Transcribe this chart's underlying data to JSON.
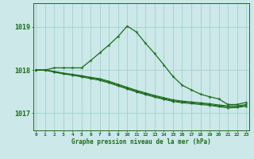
{
  "title": "Graphe pression niveau de la mer (hPa)",
  "bg_color": "#cce8e8",
  "grid_color": "#99cccc",
  "line_color": "#1a6b1a",
  "xlim": [
    -0.3,
    23.3
  ],
  "ylim": [
    1016.6,
    1019.55
  ],
  "yticks": [
    1017,
    1018,
    1019
  ],
  "xticks": [
    0,
    1,
    2,
    3,
    4,
    5,
    6,
    7,
    8,
    9,
    10,
    11,
    12,
    13,
    14,
    15,
    16,
    17,
    18,
    19,
    20,
    21,
    22,
    23
  ],
  "series": [
    {
      "x": [
        0,
        1,
        2,
        3,
        4,
        5,
        6,
        7,
        8,
        9,
        10,
        11,
        12,
        13,
        14,
        15,
        16,
        17,
        18,
        19,
        20,
        21,
        22,
        23
      ],
      "y": [
        1018.0,
        1018.0,
        1018.05,
        1018.05,
        1018.05,
        1018.05,
        1018.22,
        1018.4,
        1018.58,
        1018.78,
        1019.02,
        1018.88,
        1018.62,
        1018.38,
        1018.12,
        1017.85,
        1017.65,
        1017.54,
        1017.44,
        1017.38,
        1017.33,
        1017.2,
        1017.2,
        1017.25
      ]
    },
    {
      "x": [
        0,
        1,
        2,
        3,
        4,
        5,
        6,
        7,
        8,
        9,
        10,
        11,
        12,
        13,
        14,
        15,
        16,
        17,
        18,
        19,
        20,
        21,
        22,
        23
      ],
      "y": [
        1018.0,
        1018.0,
        1017.97,
        1017.93,
        1017.9,
        1017.87,
        1017.83,
        1017.8,
        1017.74,
        1017.67,
        1017.6,
        1017.53,
        1017.47,
        1017.41,
        1017.36,
        1017.31,
        1017.28,
        1017.26,
        1017.24,
        1017.22,
        1017.19,
        1017.17,
        1017.17,
        1017.2
      ]
    },
    {
      "x": [
        0,
        1,
        2,
        3,
        4,
        5,
        6,
        7,
        8,
        9,
        10,
        11,
        12,
        13,
        14,
        15,
        16,
        17,
        18,
        19,
        20,
        21,
        22,
        23
      ],
      "y": [
        1018.0,
        1018.0,
        1017.96,
        1017.92,
        1017.89,
        1017.86,
        1017.82,
        1017.78,
        1017.72,
        1017.65,
        1017.58,
        1017.51,
        1017.45,
        1017.39,
        1017.34,
        1017.29,
        1017.26,
        1017.24,
        1017.22,
        1017.2,
        1017.17,
        1017.15,
        1017.15,
        1017.18
      ]
    },
    {
      "x": [
        0,
        1,
        2,
        3,
        4,
        5,
        6,
        7,
        8,
        9,
        10,
        11,
        12,
        13,
        14,
        15,
        16,
        17,
        18,
        19,
        20,
        21,
        22,
        23
      ],
      "y": [
        1018.0,
        1018.0,
        1017.95,
        1017.91,
        1017.88,
        1017.84,
        1017.8,
        1017.76,
        1017.7,
        1017.63,
        1017.56,
        1017.49,
        1017.43,
        1017.37,
        1017.32,
        1017.27,
        1017.24,
        1017.22,
        1017.2,
        1017.18,
        1017.15,
        1017.12,
        1017.13,
        1017.16
      ]
    }
  ]
}
